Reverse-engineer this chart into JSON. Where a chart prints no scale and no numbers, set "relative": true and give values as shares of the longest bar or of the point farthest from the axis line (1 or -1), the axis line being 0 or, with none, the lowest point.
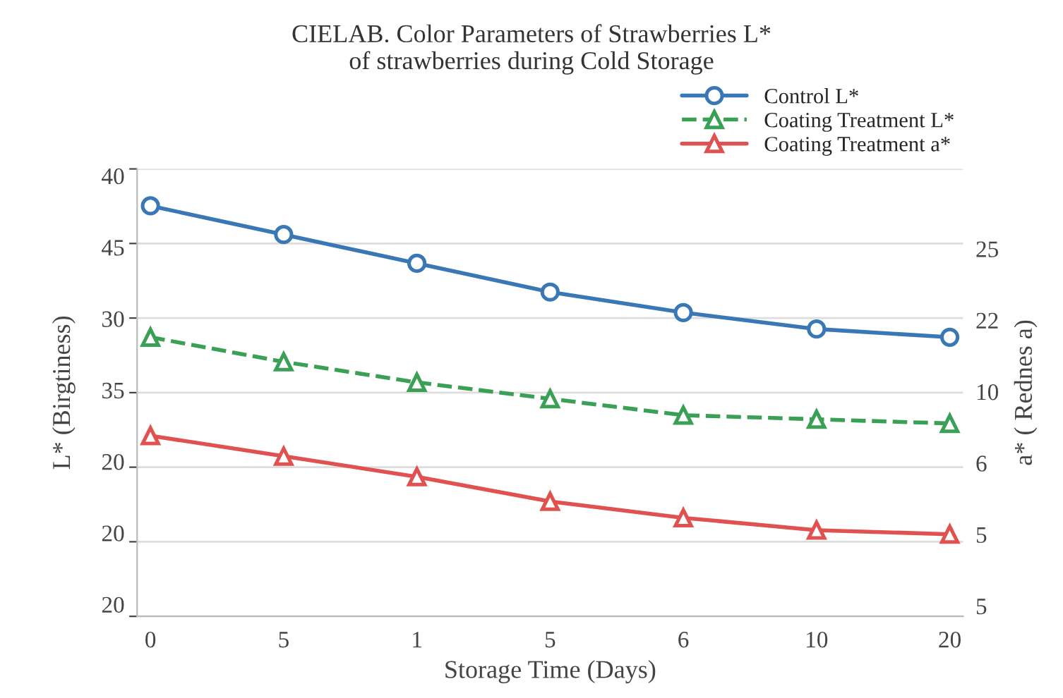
{
  "chart_data": {
    "type": "line",
    "title": "CIELAB. Color Parameters of Strawberries L*\nof strawberries during Cold Storage",
    "xlabel": "Storage Time (Days)",
    "ylabel": "L* (Birgtiness)",
    "y2label": "a* ( Rednes a)",
    "categories": [
      "0",
      "5",
      "1",
      "5",
      "6",
      "10",
      "20"
    ],
    "relative": true,
    "series": [
      {
        "name": "Control L*",
        "color": "#3a78b5",
        "marker": "circle",
        "line_style": "solid",
        "values": [
          1.0,
          0.93,
          0.86,
          0.79,
          0.74,
          0.7,
          0.68
        ]
      },
      {
        "name": "Coating Treatment L*",
        "color": "#3aa055",
        "marker": "triangle",
        "line_style": "dashed",
        "values": [
          0.68,
          0.62,
          0.57,
          0.53,
          0.49,
          0.48,
          0.47
        ]
      },
      {
        "name": "Coating Treatment a*",
        "color": "#e0524f",
        "marker": "triangle",
        "line_style": "solid",
        "values": [
          0.44,
          0.39,
          0.34,
          0.28,
          0.24,
          0.21,
          0.2
        ]
      }
    ],
    "annotations": [
      "40\n45\n30\n35\n20\n20\n20",
      "25\n22\n10\n6\n5\n5"
    ],
    "grid": "y",
    "legend": "top right"
  }
}
